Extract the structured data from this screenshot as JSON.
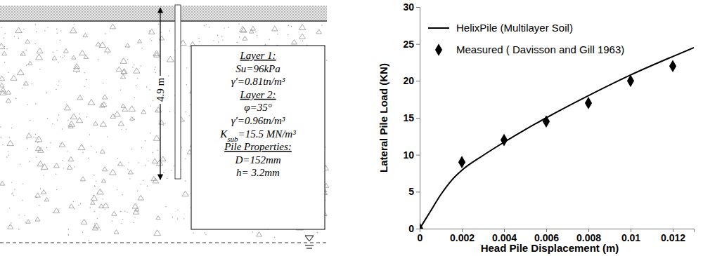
{
  "diagram": {
    "depth_label": "4.9 m",
    "groups": [
      {
        "title": "Layer 1:",
        "lines": [
          "Su=96kPa",
          "γ'=0.81tn/m³"
        ]
      },
      {
        "title": "Layer 2:",
        "lines": [
          "φ=35°",
          "γ'=0.96tn/m³",
          {
            "text": "K",
            "subscript": "sub",
            "rest": "=15.5 MN/m³"
          }
        ]
      },
      {
        "title": "Pile Properties:",
        "lines": [
          "D=152mm",
          "h= 3.2mm"
        ]
      }
    ]
  },
  "chart_data": {
    "type": "line",
    "x_label": "Head Pile Displacement (m)",
    "y_label": "Lateral Pile Load (KN)",
    "xlim": [
      0,
      0.013
    ],
    "xticks": [
      0,
      0.002,
      0.004,
      0.006,
      0.008,
      0.01,
      0.012
    ],
    "ylim": [
      0,
      30
    ],
    "yticks": [
      0,
      5,
      10,
      15,
      20,
      25,
      30
    ],
    "grid": false,
    "legend": "upper left",
    "series": [
      {
        "name": "HelixPile (Multilayer Soil)",
        "type": "line",
        "color": "#000000",
        "line_style": "solid",
        "x": [
          0,
          0.0005,
          0.001,
          0.0015,
          0.002,
          0.003,
          0.004,
          0.005,
          0.006,
          0.008,
          0.01,
          0.012,
          0.013
        ],
        "values": [
          0,
          2.3,
          4.6,
          6.5,
          7.9,
          9.9,
          11.7,
          13.4,
          15.0,
          18.0,
          20.8,
          23.3,
          24.5
        ]
      },
      {
        "name": "Measured ( Davisson and Gill 1963)",
        "type": "scatter",
        "color": "#000000",
        "marker": "diamond",
        "x": [
          0,
          0.002,
          0.004,
          0.006,
          0.008,
          0.01,
          0.012
        ],
        "values": [
          0,
          9,
          12,
          14.5,
          17,
          20,
          22
        ]
      }
    ]
  }
}
